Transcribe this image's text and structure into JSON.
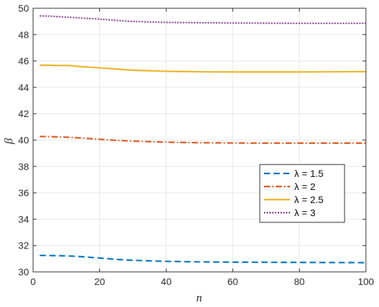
{
  "chart_data": {
    "type": "line",
    "title": "",
    "xlabel": "n",
    "ylabel": "β",
    "xlim": [
      0,
      100
    ],
    "ylim": [
      30,
      50
    ],
    "xticks": [
      0,
      20,
      40,
      60,
      80,
      100
    ],
    "yticks": [
      30,
      32,
      34,
      36,
      38,
      40,
      42,
      44,
      46,
      48,
      50
    ],
    "grid": true,
    "legend_position": "right-middle",
    "series": [
      {
        "name": "λ = 1.5",
        "color": "#0072BD",
        "style": "dashed",
        "x": [
          2,
          5,
          10,
          15,
          20,
          25,
          30,
          40,
          50,
          60,
          70,
          80,
          90,
          100
        ],
        "y": [
          31.25,
          31.24,
          31.22,
          31.15,
          31.05,
          30.95,
          30.88,
          30.8,
          30.76,
          30.74,
          30.73,
          30.72,
          30.71,
          30.7
        ]
      },
      {
        "name": "λ = 2",
        "color": "#D95319",
        "style": "dashdot",
        "x": [
          2,
          5,
          10,
          15,
          20,
          25,
          30,
          40,
          50,
          60,
          70,
          80,
          90,
          100
        ],
        "y": [
          40.27,
          40.26,
          40.22,
          40.15,
          40.06,
          39.98,
          39.92,
          39.84,
          39.8,
          39.78,
          39.77,
          39.77,
          39.77,
          39.77
        ]
      },
      {
        "name": "λ = 2.5",
        "color": "#EDB120",
        "style": "solid",
        "x": [
          2,
          5,
          8,
          10,
          15,
          20,
          25,
          30,
          40,
          50,
          60,
          70,
          80,
          90,
          100
        ],
        "y": [
          45.68,
          45.68,
          45.65,
          45.67,
          45.56,
          45.48,
          45.39,
          45.3,
          45.22,
          45.18,
          45.17,
          45.17,
          45.17,
          45.18,
          45.19
        ]
      },
      {
        "name": "λ = 3",
        "color": "#7E2F8E",
        "style": "dotted",
        "x": [
          2,
          5,
          10,
          15,
          20,
          25,
          30,
          40,
          50,
          60,
          70,
          80,
          90,
          100
        ],
        "y": [
          49.42,
          49.4,
          49.33,
          49.25,
          49.18,
          49.08,
          49.0,
          48.93,
          48.9,
          48.88,
          48.87,
          48.86,
          48.86,
          48.86
        ]
      }
    ]
  }
}
